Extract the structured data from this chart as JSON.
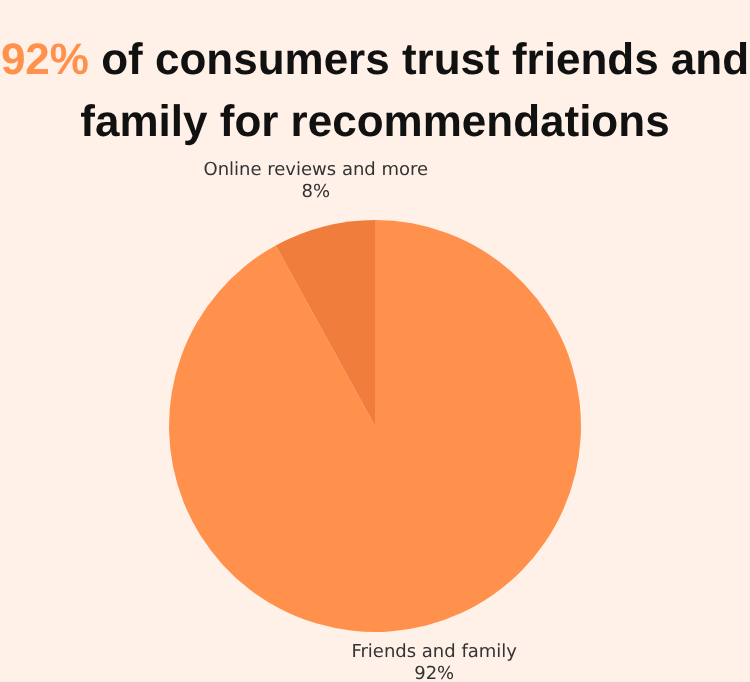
{
  "chart_data": {
    "type": "pie",
    "title": "92% of consumers trust friends and family for recommendations",
    "categories": [
      "Friends and family",
      "Online reviews and more"
    ],
    "values": [
      92,
      8
    ],
    "colors": [
      "#ff914d",
      "#f07d3b"
    ],
    "value_labels": [
      "92%",
      "8%"
    ]
  }
}
